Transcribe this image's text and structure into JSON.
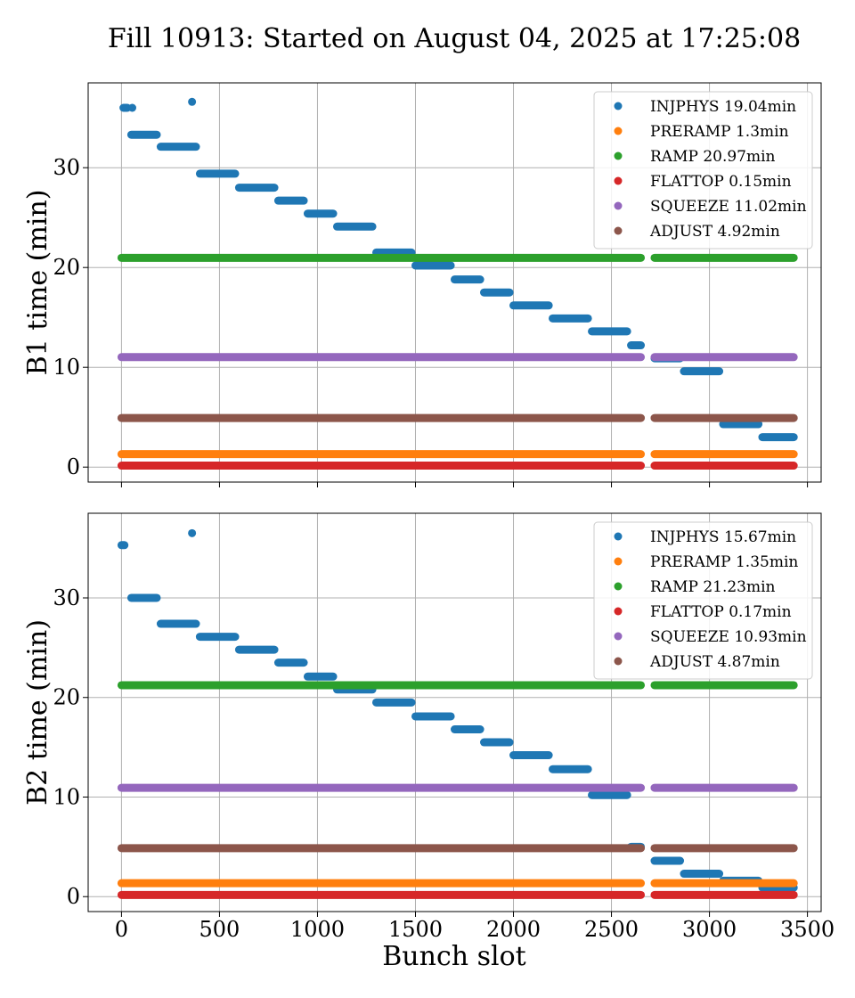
{
  "chart_data": {
    "type": "scatter",
    "title": "Fill 10913: Started on August 04, 2025 at 17:25:08",
    "xlabel": "Bunch slot",
    "xlim": [
      -170,
      3570
    ],
    "xticks": [
      0,
      500,
      1000,
      1500,
      2000,
      2500,
      3000,
      3500
    ],
    "grid": true,
    "legend_placement": "top-right",
    "panels": [
      {
        "ylabel": "B1 time (min)",
        "ylim": [
          -1.5,
          38.5
        ],
        "yticks": [
          0,
          10,
          20,
          30
        ],
        "series": [
          {
            "name": "INJPHYS 19.04min",
            "color": "#1f77b4",
            "segments": [
              {
                "x": [
                  10,
                  30
                ],
                "y": 36.0
              },
              {
                "x": 55,
                "y": 36.0
              },
              {
                "x": [
                  50,
                  180
                ],
                "y": 33.3
              },
              {
                "x": [
                  200,
                  380
                ],
                "y": 32.1
              },
              {
                "x": [
                  400,
                  580
                ],
                "y": 29.4
              },
              {
                "x": [
                  600,
                  780
                ],
                "y": 28.0
              },
              {
                "x": [
                  800,
                  930
                ],
                "y": 26.7
              },
              {
                "x": [
                  950,
                  1080
                ],
                "y": 25.4
              },
              {
                "x": [
                  1100,
                  1280
                ],
                "y": 24.1
              },
              {
                "x": [
                  1300,
                  1480
                ],
                "y": 21.5
              },
              {
                "x": [
                  1500,
                  1680
                ],
                "y": 20.2
              },
              {
                "x": [
                  1700,
                  1830
                ],
                "y": 18.8
              },
              {
                "x": [
                  1850,
                  1980
                ],
                "y": 17.5
              },
              {
                "x": [
                  2000,
                  2180
                ],
                "y": 16.2
              },
              {
                "x": [
                  2200,
                  2380
                ],
                "y": 14.9
              },
              {
                "x": [
                  2400,
                  2580
                ],
                "y": 13.6
              },
              {
                "x": [
                  2600,
                  2650
                ],
                "y": 12.2
              },
              {
                "x": [
                  2720,
                  2850
                ],
                "y": 10.9
              },
              {
                "x": [
                  2870,
                  3050
                ],
                "y": 9.6
              },
              {
                "x": [
                  3070,
                  3250
                ],
                "y": 4.3
              },
              {
                "x": [
                  3270,
                  3430
                ],
                "y": 3.0
              },
              {
                "x": [
                  360,
                  360
                ],
                "y": 36.6
              }
            ]
          },
          {
            "name": "PRERAMP 1.3min",
            "color": "#ff7f0e",
            "segments": [
              {
                "x": [
                  0,
                  2650
                ],
                "y": 1.3
              },
              {
                "x": [
                  2720,
                  3430
                ],
                "y": 1.3
              }
            ]
          },
          {
            "name": "RAMP 20.97min",
            "color": "#2ca02c",
            "segments": [
              {
                "x": [
                  0,
                  2650
                ],
                "y": 20.97
              },
              {
                "x": [
                  2720,
                  3430
                ],
                "y": 20.97
              }
            ]
          },
          {
            "name": "FLATTOP 0.15min",
            "color": "#d62728",
            "segments": [
              {
                "x": [
                  0,
                  2650
                ],
                "y": 0.15
              },
              {
                "x": [
                  2720,
                  3430
                ],
                "y": 0.15
              }
            ]
          },
          {
            "name": "SQUEEZE 11.02min",
            "color": "#9467bd",
            "segments": [
              {
                "x": [
                  0,
                  2650
                ],
                "y": 11.02
              },
              {
                "x": [
                  2720,
                  3430
                ],
                "y": 11.02
              }
            ]
          },
          {
            "name": "ADJUST 4.92min",
            "color": "#8c564b",
            "segments": [
              {
                "x": [
                  0,
                  2650
                ],
                "y": 4.92
              },
              {
                "x": [
                  2720,
                  3430
                ],
                "y": 4.92
              }
            ]
          }
        ]
      },
      {
        "ylabel": "B2 time (min)",
        "ylim": [
          -1.5,
          38.5
        ],
        "yticks": [
          0,
          10,
          20,
          30
        ],
        "series": [
          {
            "name": "INJPHYS 15.67min",
            "color": "#1f77b4",
            "segments": [
              {
                "x": [
                  0,
                  15
                ],
                "y": 35.3
              },
              {
                "x": [
                  360,
                  360
                ],
                "y": 36.5
              },
              {
                "x": [
                  50,
                  180
                ],
                "y": 30.0
              },
              {
                "x": [
                  200,
                  380
                ],
                "y": 27.4
              },
              {
                "x": [
                  400,
                  580
                ],
                "y": 26.1
              },
              {
                "x": [
                  600,
                  780
                ],
                "y": 24.8
              },
              {
                "x": [
                  800,
                  930
                ],
                "y": 23.5
              },
              {
                "x": [
                  950,
                  1080
                ],
                "y": 22.1
              },
              {
                "x": [
                  1100,
                  1280
                ],
                "y": 20.8
              },
              {
                "x": [
                  1300,
                  1480
                ],
                "y": 19.5
              },
              {
                "x": [
                  1500,
                  1680
                ],
                "y": 18.1
              },
              {
                "x": [
                  1700,
                  1830
                ],
                "y": 16.8
              },
              {
                "x": [
                  1850,
                  1980
                ],
                "y": 15.5
              },
              {
                "x": [
                  2000,
                  2180
                ],
                "y": 14.2
              },
              {
                "x": [
                  2200,
                  2380
                ],
                "y": 12.8
              },
              {
                "x": [
                  2400,
                  2580
                ],
                "y": 10.2
              },
              {
                "x": [
                  2600,
                  2650
                ],
                "y": 5.0
              },
              {
                "x": [
                  2720,
                  2850
                ],
                "y": 3.6
              },
              {
                "x": [
                  2870,
                  3050
                ],
                "y": 2.3
              },
              {
                "x": [
                  3070,
                  3250
                ],
                "y": 1.6
              },
              {
                "x": [
                  3270,
                  3430
                ],
                "y": 0.9
              }
            ]
          },
          {
            "name": "PRERAMP 1.35min",
            "color": "#ff7f0e",
            "segments": [
              {
                "x": [
                  0,
                  2650
                ],
                "y": 1.35
              },
              {
                "x": [
                  2720,
                  3430
                ],
                "y": 1.35
              }
            ]
          },
          {
            "name": "RAMP 21.23min",
            "color": "#2ca02c",
            "segments": [
              {
                "x": [
                  0,
                  2650
                ],
                "y": 21.23
              },
              {
                "x": [
                  2720,
                  3430
                ],
                "y": 21.23
              }
            ]
          },
          {
            "name": "FLATTOP 0.17min",
            "color": "#d62728",
            "segments": [
              {
                "x": [
                  0,
                  2650
                ],
                "y": 0.17
              },
              {
                "x": [
                  2720,
                  3430
                ],
                "y": 0.17
              }
            ]
          },
          {
            "name": "SQUEEZE 10.93min",
            "color": "#9467bd",
            "segments": [
              {
                "x": [
                  0,
                  2650
                ],
                "y": 10.93
              },
              {
                "x": [
                  2720,
                  3430
                ],
                "y": 10.93
              }
            ]
          },
          {
            "name": "ADJUST 4.87min",
            "color": "#8c564b",
            "segments": [
              {
                "x": [
                  0,
                  2650
                ],
                "y": 4.87
              },
              {
                "x": [
                  2720,
                  3430
                ],
                "y": 4.87
              }
            ]
          }
        ]
      }
    ]
  }
}
